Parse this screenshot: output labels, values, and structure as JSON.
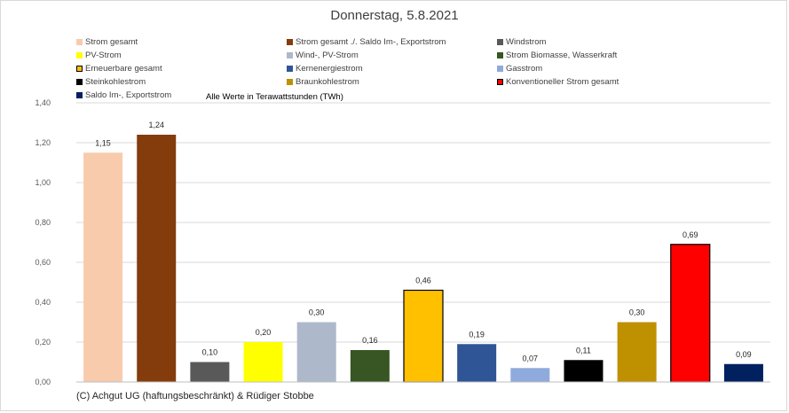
{
  "chart_data": {
    "type": "bar",
    "title": "Donnerstag, 5.8.2021",
    "unit_note": "Alle Werte in Terawattstunden (TWh)",
    "copyright": "(C) Achgut UG (haftungsbeschränkt) & Rüdiger Stobbe",
    "ylim": [
      0,
      1.4
    ],
    "yticks": [
      {
        "value": 0.0,
        "label": "0,00"
      },
      {
        "value": 0.2,
        "label": "0,20"
      },
      {
        "value": 0.4,
        "label": "0,40"
      },
      {
        "value": 0.6,
        "label": "0,60"
      },
      {
        "value": 0.8,
        "label": "0,80"
      },
      {
        "value": 1.0,
        "label": "1,00"
      },
      {
        "value": 1.2,
        "label": "1,20"
      },
      {
        "value": 1.4,
        "label": "1,40"
      }
    ],
    "grid": "horizontal",
    "legend_position": "top",
    "series": [
      {
        "name": "Strom gesamt",
        "value": 1.15,
        "label": "1,15",
        "color": "#f8cbad"
      },
      {
        "name": "Strom gesamt ./. Saldo Im-, Exportstrom",
        "value": 1.24,
        "label": "1,24",
        "color": "#843c0c"
      },
      {
        "name": "Windstrom",
        "value": 0.1,
        "label": "0,10",
        "color": "#595959"
      },
      {
        "name": "PV-Strom",
        "value": 0.2,
        "label": "0,20",
        "color": "#ffff00"
      },
      {
        "name": "Wind-, PV-Strom",
        "value": 0.3,
        "label": "0,30",
        "color": "#adb9ca"
      },
      {
        "name": "Strom Biomasse, Wasserkraft",
        "value": 0.16,
        "label": "0,16",
        "color": "#375623"
      },
      {
        "name": "Erneuerbare gesamt",
        "value": 0.46,
        "label": "0,46",
        "color": "#ffc000",
        "outline": "#000000"
      },
      {
        "name": "Kernenergiestrom",
        "value": 0.19,
        "label": "0,19",
        "color": "#2f5597"
      },
      {
        "name": "Gasstrom",
        "value": 0.07,
        "label": "0,07",
        "color": "#8faadc"
      },
      {
        "name": "Steinkohlestrom",
        "value": 0.11,
        "label": "0,11",
        "color": "#000000"
      },
      {
        "name": "Braunkohlestrom",
        "value": 0.3,
        "label": "0,30",
        "color": "#bf9000"
      },
      {
        "name": "Konventioneller Strom gesamt",
        "value": 0.69,
        "label": "0,69",
        "color": "#ff0000",
        "outline": "#000000"
      },
      {
        "name": "Saldo Im-, Exportstrom",
        "value": 0.09,
        "label": "0,09",
        "color": "#002060"
      }
    ]
  }
}
